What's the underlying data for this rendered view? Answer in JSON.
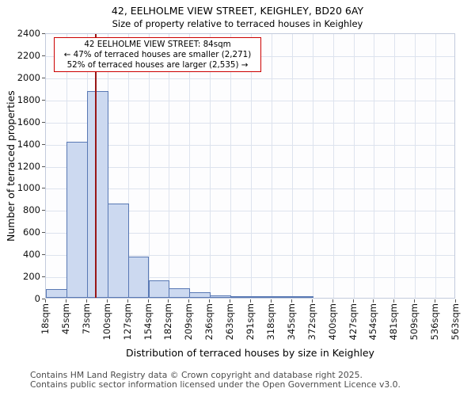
{
  "footer": {
    "line1": "Contains HM Land Registry data © Crown copyright and database right 2025.",
    "line2": "Contains public sector information licensed under the Open Government Licence v3.0."
  },
  "chart_data": {
    "type": "bar",
    "title": "42, EELHOLME VIEW STREET, KEIGHLEY, BD20 6AY",
    "subtitle": "Size of property relative to terraced houses in Keighley",
    "xlabel": "Distribution of terraced houses by size in Keighley",
    "ylabel": "Number of terraced properties",
    "annotation": {
      "line1": "42 EELHOLME VIEW STREET: 84sqm",
      "line2": "← 47% of terraced houses are smaller (2,271)",
      "line3": "52% of terraced houses are larger (2,535) →"
    },
    "bin_edges_sqm": [
      18,
      45,
      73,
      100,
      127,
      154,
      182,
      209,
      236,
      263,
      291,
      318,
      345,
      372,
      400,
      427,
      454,
      481,
      509,
      536,
      563
    ],
    "tick_labels": [
      "18sqm",
      "45sqm",
      "73sqm",
      "100sqm",
      "127sqm",
      "154sqm",
      "182sqm",
      "209sqm",
      "236sqm",
      "263sqm",
      "291sqm",
      "318sqm",
      "345sqm",
      "372sqm",
      "400sqm",
      "427sqm",
      "454sqm",
      "481sqm",
      "509sqm",
      "536sqm",
      "563sqm"
    ],
    "values": [
      80,
      1410,
      1870,
      850,
      370,
      160,
      85,
      50,
      25,
      10,
      8,
      5,
      3,
      0,
      0,
      0,
      0,
      0,
      0,
      0
    ],
    "ylim": [
      0,
      2400
    ],
    "yticks": [
      0,
      200,
      400,
      600,
      800,
      1000,
      1200,
      1400,
      1600,
      1800,
      2000,
      2200,
      2400
    ],
    "marker_value_sqm": 84,
    "grid": "on",
    "legend": "none",
    "colors": {
      "bar_fill": "#ccd9f0",
      "bar_border": "#5878b4",
      "marker_line": "#991717",
      "grid": "#dde3ee",
      "annotation_border": "#cc0000"
    }
  }
}
